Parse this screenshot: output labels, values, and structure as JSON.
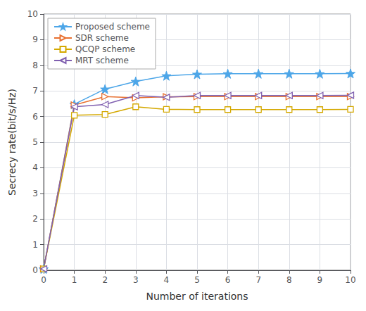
{
  "chart_data": {
    "type": "line",
    "xlabel": "Number of iterations",
    "ylabel": "Secrecy rate(bit/s/Hz)",
    "x": [
      0,
      1,
      2,
      3,
      4,
      5,
      6,
      7,
      8,
      9,
      10
    ],
    "series": [
      {
        "name": "Proposed scheme",
        "color": "#4da6e8",
        "marker": "star",
        "values": [
          0.05,
          6.48,
          7.07,
          7.37,
          7.59,
          7.65,
          7.67,
          7.67,
          7.67,
          7.67,
          7.68
        ]
      },
      {
        "name": "SDR scheme",
        "color": "#e87030",
        "marker": "triangle-right-open",
        "values": [
          0.05,
          6.45,
          6.78,
          6.73,
          6.77,
          6.78,
          6.78,
          6.78,
          6.78,
          6.78,
          6.78
        ]
      },
      {
        "name": "QCQP scheme",
        "color": "#d4a800",
        "marker": "square-open",
        "values": [
          0.05,
          6.05,
          6.08,
          6.38,
          6.28,
          6.27,
          6.27,
          6.27,
          6.27,
          6.27,
          6.28
        ]
      },
      {
        "name": "MRT scheme",
        "color": "#8060b0",
        "marker": "triangle-left-open",
        "values": [
          0.05,
          6.38,
          6.47,
          6.82,
          6.75,
          6.82,
          6.82,
          6.82,
          6.82,
          6.82,
          6.83
        ]
      }
    ],
    "xlim": [
      0,
      10
    ],
    "ylim": [
      0,
      10
    ],
    "xticks": [
      0,
      1,
      2,
      3,
      4,
      5,
      6,
      7,
      8,
      9,
      10
    ],
    "yticks": [
      0,
      1,
      2,
      3,
      4,
      5,
      6,
      7,
      8,
      9,
      10
    ],
    "grid": true,
    "legend": "upper left"
  }
}
